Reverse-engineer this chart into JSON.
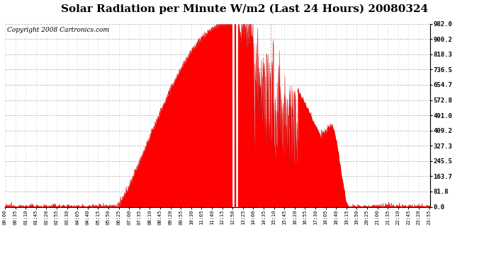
{
  "title": "Solar Radiation per Minute W/m2 (Last 24 Hours) 20080324",
  "copyright": "Copyright 2008 Cartronics.com",
  "yticks": [
    0.0,
    81.8,
    163.7,
    245.5,
    327.3,
    409.2,
    491.0,
    572.8,
    654.7,
    736.5,
    818.3,
    900.2,
    982.0
  ],
  "ymax": 982.0,
  "ymin": 0.0,
  "fill_color": "#FF0000",
  "line_color": "#CC0000",
  "bg_color": "#FFFFFF",
  "grid_color": "#BBBBBB",
  "red_dash_color": "#FF0000",
  "white_line_color": "#FFFFFF",
  "title_fontsize": 11,
  "copyright_fontsize": 6.5,
  "tick_interval_minutes": 35
}
